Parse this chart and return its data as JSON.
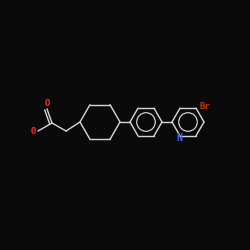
{
  "background_color": "#0a0a0a",
  "bond_color": "#d8d8d8",
  "N_color": "#4466ff",
  "O_color": "#ff3333",
  "Br_color": "#cc3300",
  "figsize": [
    2.5,
    2.5
  ],
  "dpi": 100,
  "xlim": [
    0,
    250
  ],
  "ylim": [
    0,
    250
  ],
  "mol_scale": 1.0,
  "lw": 1.0,
  "fontsize": 6.5,
  "ring_r": 16,
  "hex_r": 20
}
